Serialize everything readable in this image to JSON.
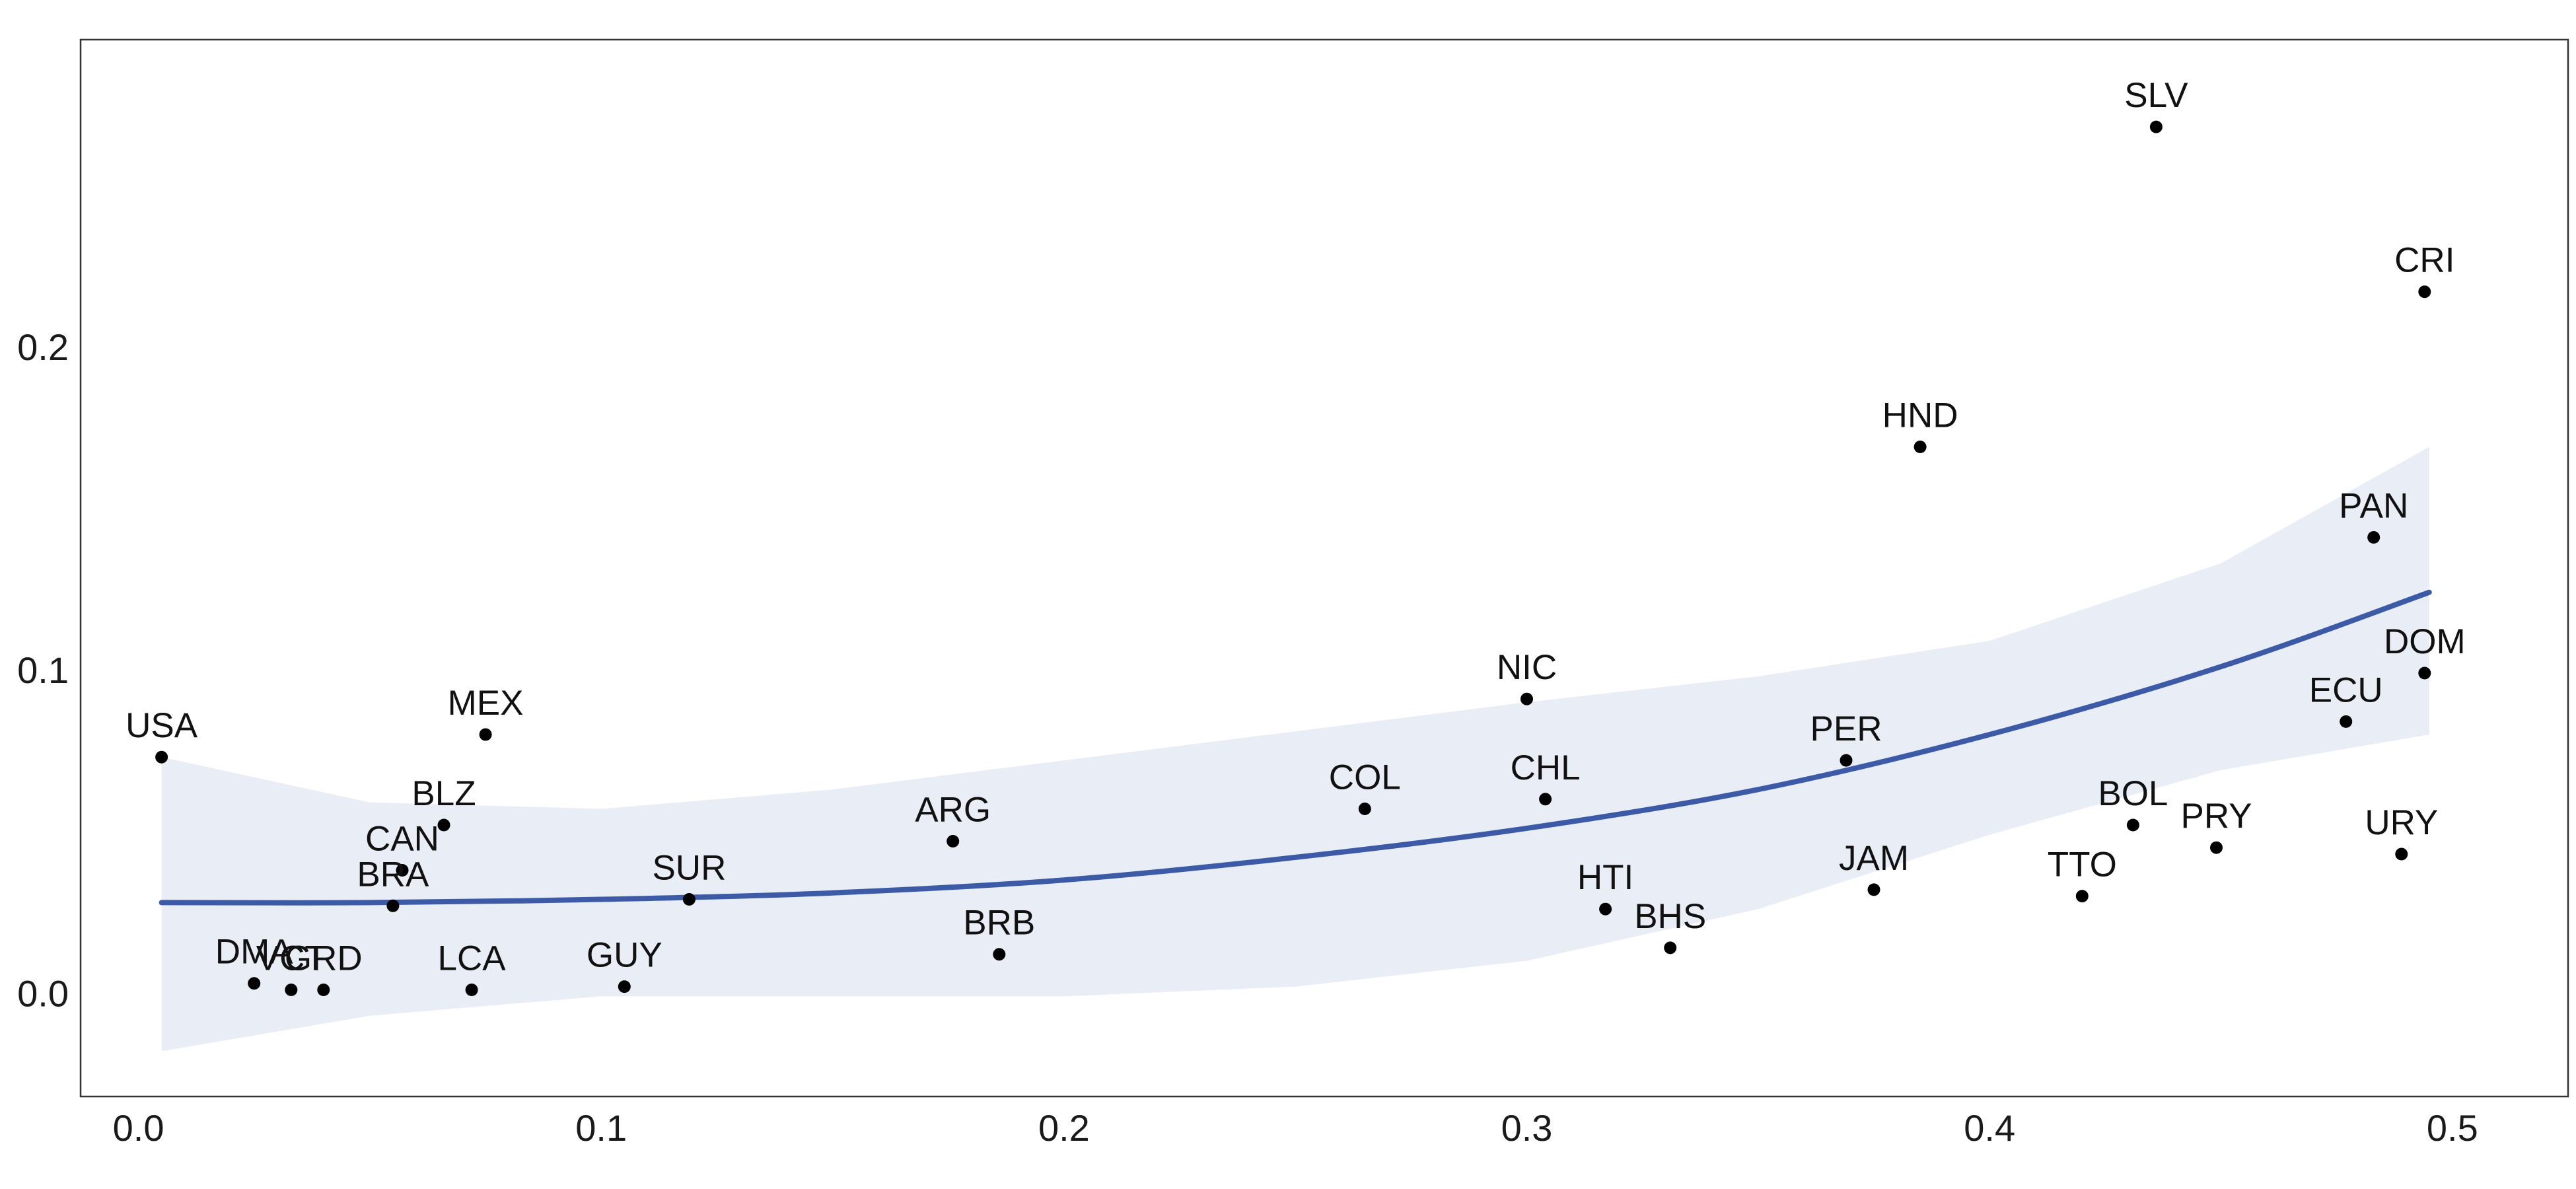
{
  "chart_data": {
    "type": "scatter",
    "title": "",
    "xlabel": "",
    "ylabel": "",
    "xlim": [
      -0.0125,
      0.525
    ],
    "ylim": [
      -0.032,
      0.295
    ],
    "x_ticks": [
      0.0,
      0.1,
      0.2,
      0.3,
      0.4,
      0.5
    ],
    "x_tick_labels": [
      "0.0",
      "0.1",
      "0.2",
      "0.3",
      "0.4",
      "0.5"
    ],
    "y_ticks": [
      0.0,
      0.1,
      0.2
    ],
    "y_tick_labels": [
      "0.0",
      "0.1",
      "0.2"
    ],
    "grid": false,
    "legend": "none",
    "points": [
      {
        "label": "USA",
        "x": 0.005,
        "y": 0.073
      },
      {
        "label": "MEX",
        "x": 0.075,
        "y": 0.08
      },
      {
        "label": "BLZ",
        "x": 0.066,
        "y": 0.052
      },
      {
        "label": "CAN",
        "x": 0.057,
        "y": 0.038
      },
      {
        "label": "BRA",
        "x": 0.055,
        "y": 0.027
      },
      {
        "label": "DMA",
        "x": 0.025,
        "y": 0.003
      },
      {
        "label": "VCT",
        "x": 0.033,
        "y": 0.001
      },
      {
        "label": "GRD",
        "x": 0.04,
        "y": 0.001
      },
      {
        "label": "LCA",
        "x": 0.072,
        "y": 0.001
      },
      {
        "label": "GUY",
        "x": 0.105,
        "y": 0.002
      },
      {
        "label": "SUR",
        "x": 0.119,
        "y": 0.029
      },
      {
        "label": "ARG",
        "x": 0.176,
        "y": 0.047
      },
      {
        "label": "BRB",
        "x": 0.186,
        "y": 0.012
      },
      {
        "label": "COL",
        "x": 0.265,
        "y": 0.057
      },
      {
        "label": "NIC",
        "x": 0.3,
        "y": 0.091
      },
      {
        "label": "CHL",
        "x": 0.304,
        "y": 0.06
      },
      {
        "label": "HTI",
        "x": 0.317,
        "y": 0.026
      },
      {
        "label": "BHS",
        "x": 0.331,
        "y": 0.014
      },
      {
        "label": "PER",
        "x": 0.369,
        "y": 0.072
      },
      {
        "label": "JAM",
        "x": 0.375,
        "y": 0.032
      },
      {
        "label": "HND",
        "x": 0.385,
        "y": 0.169
      },
      {
        "label": "SLV",
        "x": 0.436,
        "y": 0.268
      },
      {
        "label": "TTO",
        "x": 0.42,
        "y": 0.03
      },
      {
        "label": "BOL",
        "x": 0.431,
        "y": 0.052
      },
      {
        "label": "PRY",
        "x": 0.449,
        "y": 0.045
      },
      {
        "label": "ECU",
        "x": 0.477,
        "y": 0.084
      },
      {
        "label": "PAN",
        "x": 0.483,
        "y": 0.141
      },
      {
        "label": "CRI",
        "x": 0.494,
        "y": 0.217
      },
      {
        "label": "DOM",
        "x": 0.494,
        "y": 0.099
      },
      {
        "label": "URY",
        "x": 0.489,
        "y": 0.043
      }
    ],
    "fit_line": {
      "x": [
        0.005,
        0.05,
        0.1,
        0.15,
        0.2,
        0.25,
        0.3,
        0.35,
        0.4,
        0.45,
        0.495
      ],
      "y": [
        0.028,
        0.028,
        0.029,
        0.031,
        0.035,
        0.042,
        0.051,
        0.063,
        0.08,
        0.101,
        0.124
      ]
    },
    "confidence_band": {
      "x": [
        0.005,
        0.05,
        0.1,
        0.15,
        0.2,
        0.25,
        0.3,
        0.35,
        0.4,
        0.45,
        0.495
      ],
      "upper": [
        0.073,
        0.059,
        0.057,
        0.063,
        0.072,
        0.081,
        0.09,
        0.098,
        0.109,
        0.133,
        0.169
      ],
      "lower": [
        -0.018,
        -0.007,
        -0.001,
        -0.001,
        -0.001,
        0.002,
        0.01,
        0.026,
        0.049,
        0.069,
        0.08
      ]
    },
    "colors": {
      "line": "#3c5aa6",
      "band": "#e8edf6",
      "point": "#000000",
      "frame": "#333333"
    }
  }
}
